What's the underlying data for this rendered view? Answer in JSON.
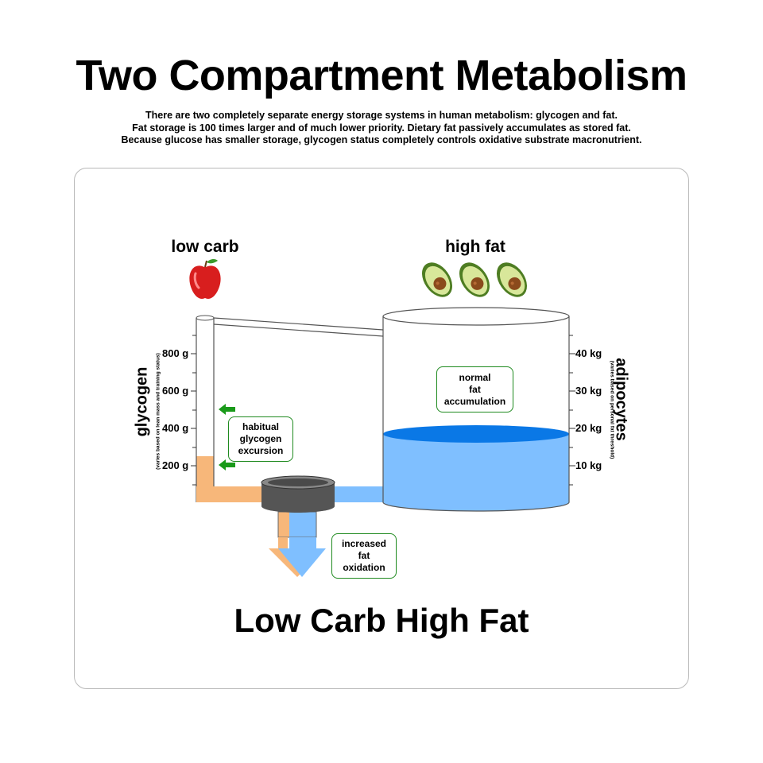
{
  "title": "Two Compartment Metabolism",
  "subtitle_lines": [
    "There are two completely separate energy storage systems in human metabolism:  glycogen and fat.",
    "Fat storage is 100 times larger and of much lower priority.  Dietary fat passively accumulates as stored fat.",
    "Because glucose has smaller storage, glycogen status completely controls oxidative substrate macronutrient."
  ],
  "diagram": {
    "low_carb_label": "low carb",
    "high_fat_label": "high fat",
    "apple_icon": "apple-icon",
    "avocado_icon": "avocado-icon",
    "glycogen_label": "glycogen",
    "glycogen_note": "(varies based on lean mass and training status)",
    "glycogen_ticks": [
      "800 g",
      "600 g",
      "400 g",
      "200 g"
    ],
    "adipocytes_label": "adipocytes",
    "adipocytes_note": "(varies based on personal fat threshold)",
    "adipocytes_ticks": [
      "40 kg",
      "30 kg",
      "20 kg",
      "10 kg"
    ],
    "callout_glycogen": "habitual\nglycogen\nexcursion",
    "callout_fat_accumulation": "normal\nfat\naccumulation",
    "callout_fat_oxidation": "increased\nfat\noxidation",
    "bottom_title": "Low Carb High Fat",
    "colors": {
      "glycogen": "#f7b77a",
      "fat": "#7fbfff",
      "fat_surface": "#0a78e6",
      "valve": "#555555",
      "arrow_green": "#1a9a1a"
    }
  }
}
